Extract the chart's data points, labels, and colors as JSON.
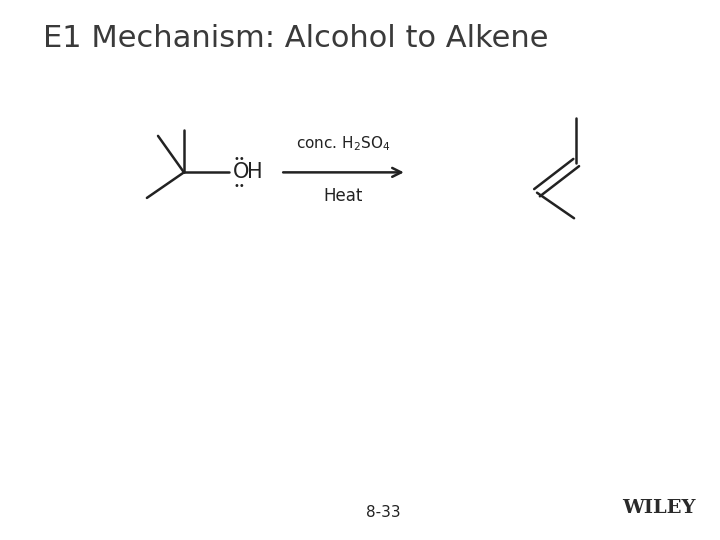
{
  "title": "E1 Mechanism: Alcohol to Alkene",
  "title_fontsize": 22,
  "background_color": "#ffffff",
  "text_color": "#3a3a3a",
  "page_number": "8-33",
  "wiley_text": "WILEY",
  "reaction_label_above": "conc. H₂SO₄",
  "reaction_label_below": "Heat",
  "line_color": "#222222",
  "line_width": 1.8,
  "dot_color": "#222222"
}
